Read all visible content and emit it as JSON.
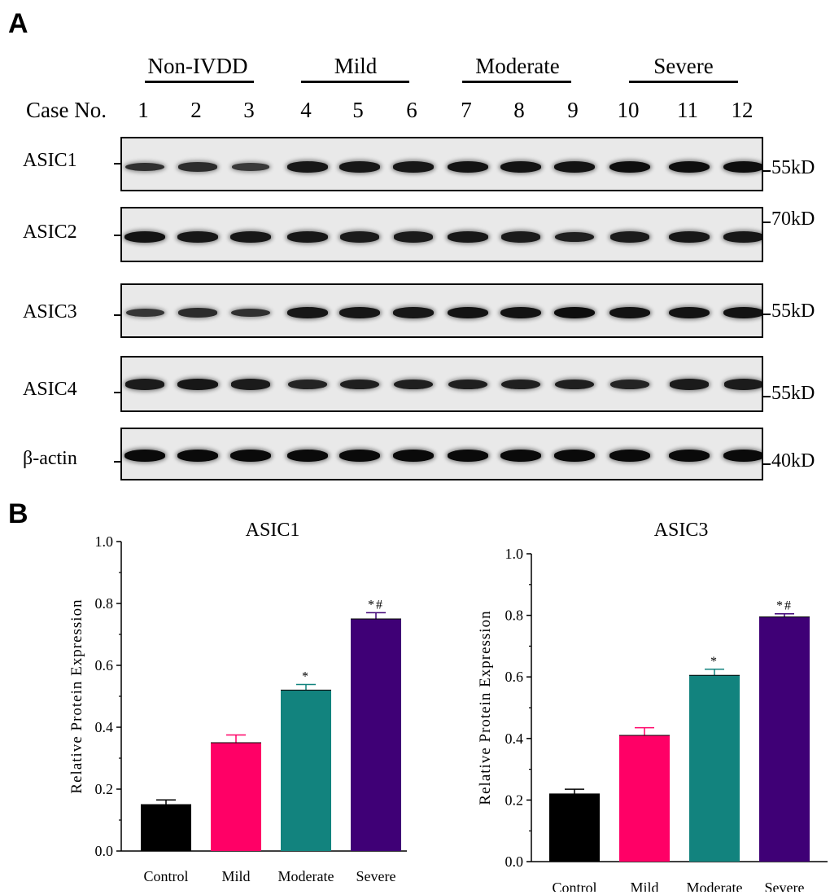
{
  "panel_a": {
    "letter": "A",
    "case_label": "Case No.",
    "groups": [
      {
        "label": "Non-IVDD"
      },
      {
        "label": "Mild"
      },
      {
        "label": "Moderate"
      },
      {
        "label": "Severe"
      }
    ],
    "lanes": [
      "1",
      "2",
      "3",
      "4",
      "5",
      "6",
      "7",
      "8",
      "9",
      "10",
      "11",
      "12"
    ],
    "blots": [
      {
        "protein": "ASIC1",
        "mw": "55kD",
        "intensity": [
          0.55,
          0.6,
          0.45,
          0.85,
          0.85,
          0.85,
          0.9,
          0.9,
          0.9,
          0.95,
          0.95,
          0.95
        ]
      },
      {
        "protein": "ASIC2",
        "mw": "70kD",
        "intensity": [
          0.9,
          0.85,
          0.85,
          0.85,
          0.8,
          0.8,
          0.85,
          0.8,
          0.75,
          0.8,
          0.85,
          0.85
        ]
      },
      {
        "protein": "ASIC3",
        "mw": "55kD",
        "intensity": [
          0.5,
          0.6,
          0.55,
          0.85,
          0.85,
          0.85,
          0.9,
          0.9,
          0.95,
          0.9,
          0.9,
          0.9
        ]
      },
      {
        "protein": "ASIC4",
        "mw": "55kD",
        "intensity": [
          0.8,
          0.85,
          0.8,
          0.7,
          0.75,
          0.75,
          0.75,
          0.75,
          0.75,
          0.7,
          0.8,
          0.8
        ]
      },
      {
        "protein": "β-actin",
        "mw": "40kD",
        "intensity": [
          1,
          1,
          1,
          1,
          1,
          1,
          1,
          1,
          1,
          1,
          1,
          1
        ]
      }
    ]
  },
  "panel_b": {
    "letter": "B"
  },
  "colors": {
    "Control": "#000000",
    "Mild": "#ff0066",
    "Moderate": "#12837e",
    "Severe": "#3f0076"
  },
  "chart_data": [
    {
      "type": "bar",
      "title": "ASIC1",
      "ylabel": "Relative Protein Expression",
      "xlabel": "",
      "categories": [
        "Control",
        "Mild",
        "Moderate",
        "Severe"
      ],
      "values": [
        0.15,
        0.35,
        0.52,
        0.75
      ],
      "errors": [
        0.015,
        0.025,
        0.018,
        0.02
      ],
      "annotations": [
        "",
        "",
        "*",
        "*#"
      ],
      "ylim": [
        0.0,
        1.0
      ],
      "yticks": [
        "0.0",
        "0.2",
        "0.4",
        "0.6",
        "0.8",
        "1.0"
      ]
    },
    {
      "type": "bar",
      "title": "ASIC3",
      "ylabel": "Relative Protein Expression",
      "xlabel": "",
      "categories": [
        "Control",
        "Mild",
        "Moderate",
        "Severe"
      ],
      "values": [
        0.22,
        0.41,
        0.605,
        0.795
      ],
      "errors": [
        0.015,
        0.025,
        0.02,
        0.01
      ],
      "annotations": [
        "",
        "",
        "*",
        "*#"
      ],
      "ylim": [
        0.0,
        1.0
      ],
      "yticks": [
        "0.0",
        "0.2",
        "0.4",
        "0.6",
        "0.8",
        "1.0"
      ]
    }
  ]
}
